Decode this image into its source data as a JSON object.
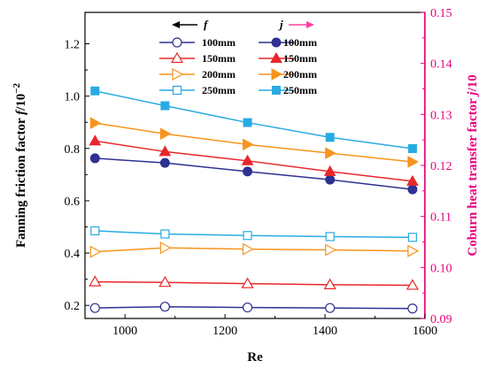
{
  "chart_data": {
    "type": "line",
    "x": [
      940,
      1080,
      1245,
      1410,
      1575
    ],
    "xlabel": "Re",
    "ylabel_left_prefix": "Fanning friction factor ",
    "ylabel_left_var": "f",
    "ylabel_left_suffix": "/10",
    "ylabel_left_exp": "−2",
    "ylabel_right_prefix": "Coburn heat transfer factor ",
    "ylabel_right_var": "j",
    "ylabel_right_suffix": "/10",
    "xlim": [
      920,
      1600
    ],
    "ylim_left": [
      0.15,
      1.32
    ],
    "ylim_right": [
      0.09,
      0.15
    ],
    "xticks": [
      "1000",
      "1200",
      "1400",
      "1600"
    ],
    "yticks_left": [
      "0.2",
      "0.4",
      "0.6",
      "0.8",
      "1.0",
      "1.2"
    ],
    "yticks_right": [
      "0.09",
      "0.10",
      "0.11",
      "0.12",
      "0.13",
      "0.14",
      "0.15"
    ],
    "legend_headers": {
      "f": "f",
      "j": "j"
    },
    "series": [
      {
        "name": "100mm",
        "group": "f",
        "axis": "left",
        "color": "#2e3192",
        "marker": "circle",
        "filled": false,
        "values": [
          0.19,
          0.195,
          0.192,
          0.19,
          0.188
        ]
      },
      {
        "name": "150mm",
        "group": "f",
        "axis": "left",
        "color": "#e8262b",
        "marker": "triangle-up",
        "filled": false,
        "values": [
          0.29,
          0.288,
          0.283,
          0.279,
          0.277
        ]
      },
      {
        "name": "200mm",
        "group": "f",
        "axis": "left",
        "color": "#f7941d",
        "marker": "triangle-right",
        "filled": false,
        "values": [
          0.405,
          0.42,
          0.415,
          0.412,
          0.408
        ]
      },
      {
        "name": "250mm",
        "group": "f",
        "axis": "left",
        "color": "#29abe2",
        "marker": "square",
        "filled": false,
        "values": [
          0.485,
          0.473,
          0.467,
          0.463,
          0.46
        ]
      },
      {
        "name": "100mm",
        "group": "j",
        "axis": "right",
        "color": "#2e3192",
        "marker": "circle",
        "filled": true,
        "values": [
          0.1214,
          0.1205,
          0.1188,
          0.1172,
          0.1153
        ]
      },
      {
        "name": "150mm",
        "group": "j",
        "axis": "right",
        "color": "#e8262b",
        "marker": "triangle-up",
        "filled": true,
        "values": [
          0.1248,
          0.1227,
          0.1209,
          0.1188,
          0.1169
        ]
      },
      {
        "name": "200mm",
        "group": "j",
        "axis": "right",
        "color": "#f7941d",
        "marker": "triangle-right",
        "filled": true,
        "values": [
          0.1283,
          0.1262,
          0.1241,
          0.1224,
          0.1207
        ]
      },
      {
        "name": "250mm",
        "group": "j",
        "axis": "right",
        "color": "#29abe2",
        "marker": "square",
        "filled": true,
        "values": [
          0.1346,
          0.1317,
          0.1284,
          0.1255,
          0.1233
        ]
      }
    ],
    "colors": {
      "left_axis": "#000000",
      "right_axis": "#e6007e",
      "legend_f_arrow": "#000000",
      "legend_j_arrow": "#ff40a0"
    },
    "grid": false,
    "legend_position": "top-center"
  }
}
